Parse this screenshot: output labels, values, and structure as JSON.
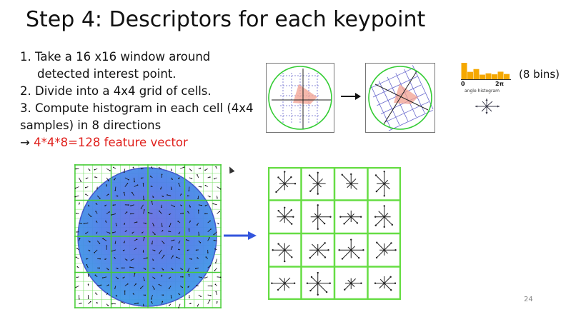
{
  "slide": {
    "title": "Step 4: Descriptors for each keypoint",
    "steps": [
      "1.  Take a 16 x16 window around",
      "detected interest point.",
      "2. Divide into a 4x4 grid of cells.",
      "3. Compute histogram in each cell (4x4",
      "samples) in 8 directions"
    ],
    "result_arrow": "→",
    "result_text": "4*4*8=128 feature vector",
    "page_number": "24"
  },
  "histogram": {
    "bins_label": "(8 bins)",
    "axis_start": "0",
    "axis_end": "2π",
    "caption": "angle histogram",
    "bar_levels": [
      1.0,
      0.45,
      0.62,
      0.28,
      0.36,
      0.3,
      0.46,
      0.32
    ],
    "color": "#f5a800"
  },
  "colors": {
    "title_text": "#111111",
    "highlight_red": "#e0201c",
    "grid_green": "#66dd44",
    "blob_blue": "#4a6fe0",
    "arrow_blue": "#3355dd",
    "circle_green": "#33cc33",
    "grid_purple": "#6666cc"
  }
}
